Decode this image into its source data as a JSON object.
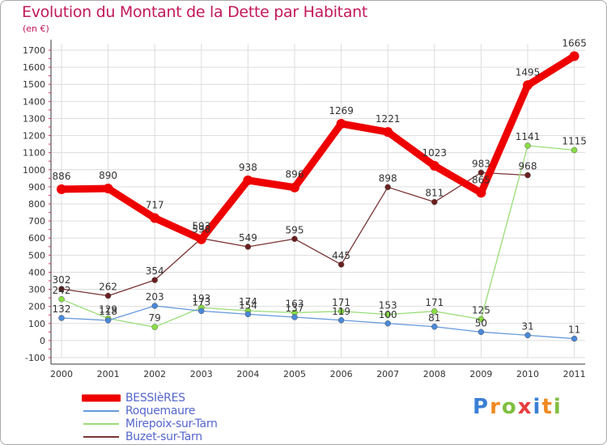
{
  "title": "Evolution du Montant de la Dette par Habitant",
  "unit": "(en €)",
  "logo": {
    "letters": [
      "P",
      "r",
      "o",
      "x",
      "i",
      "t",
      "i"
    ],
    "colors": [
      "#3a7fd5",
      "#f08a24",
      "#7fbf3f",
      "#e83d3d",
      "#3a7fd5",
      "#f08a24",
      "#7fbf3f"
    ]
  },
  "chart_data": {
    "type": "line",
    "x": [
      "2000",
      "2001",
      "2002",
      "2003",
      "2004",
      "2005",
      "2006",
      "2007",
      "2008",
      "2009",
      "2010",
      "2011"
    ],
    "ylim": [
      -100,
      1700
    ],
    "yticks": [
      "-100",
      "0",
      "100",
      "200",
      "300",
      "400",
      "500",
      "600",
      "700",
      "800",
      "900",
      "1000",
      "1100",
      "1200",
      "1300",
      "1400",
      "1500",
      "1600",
      "1700"
    ],
    "grid": true,
    "legend_position": "bottom-left",
    "series": [
      {
        "name": "BESSIèRES",
        "color": "#ee0000",
        "width": 9,
        "marker": 6,
        "values": [
          886,
          890,
          717,
          593,
          938,
          896,
          1269,
          1221,
          1023,
          865,
          1495,
          1665
        ],
        "labels": [
          "886",
          "890",
          "717",
          "593",
          "938",
          "896",
          "1269",
          "1221",
          "1023",
          "865",
          "1495",
          "1665"
        ]
      },
      {
        "name": "Roquemaure",
        "color": "#6699dd",
        "marker_color": "#4a88d8",
        "width": 1.3,
        "marker": 3.5,
        "values": [
          132,
          118,
          203,
          173,
          154,
          137,
          119,
          100,
          81,
          50,
          31,
          11
        ],
        "labels": [
          "132",
          "118",
          "203",
          "173",
          "154",
          "137",
          "119",
          "100",
          "81",
          "50",
          "31",
          "11"
        ]
      },
      {
        "name": "Mirepoix-sur-Tarn",
        "color": "#99dd77",
        "marker_color": "#88dd44",
        "width": 1.3,
        "marker": 3.5,
        "values": [
          242,
          129,
          79,
          193,
          174,
          163,
          171,
          153,
          171,
          125,
          1141,
          1115
        ],
        "labels": [
          "242",
          "129",
          "79",
          "193",
          "174",
          "163",
          "171",
          "153",
          "171",
          "125",
          "1141",
          "1115"
        ]
      },
      {
        "name": "Buzet-sur-Tarn",
        "color": "#7a3333",
        "marker_color": "#6b1f1f",
        "width": 1.3,
        "marker": 3.5,
        "values": [
          302,
          262,
          354,
          598,
          549,
          595,
          445,
          898,
          811,
          983,
          968,
          null
        ],
        "labels": [
          "302",
          "262",
          "354",
          "598",
          "549",
          "595",
          "445",
          "898",
          "811",
          "983",
          "968",
          ""
        ]
      }
    ]
  }
}
